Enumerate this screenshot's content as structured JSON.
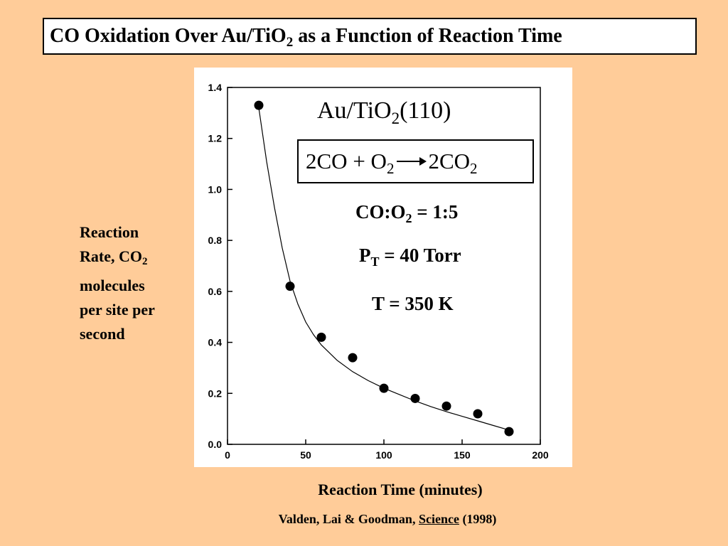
{
  "slide": {
    "title_pre": "CO Oxidation Over Au/TiO",
    "title_sub": "2",
    "title_post": " as a Function of Reaction Time",
    "ylabel_line1": "Reaction",
    "ylabel_line2_pre": "Rate, CO",
    "ylabel_line2_sub": "2",
    "ylabel_line3": "molecules",
    "ylabel_line4": "per site per",
    "ylabel_line5": "second",
    "xlabel": "Reaction Time (minutes)",
    "citation_authors": "Valden, Lai & Goodman, ",
    "citation_journal": "Science",
    "citation_year": " (1998)"
  },
  "annotations": {
    "catalyst_pre": "Au/TiO",
    "catalyst_sub": "2",
    "catalyst_post": "(110)",
    "eq_left": "2CO + O",
    "eq_left_sub": "2",
    "eq_right": "2CO",
    "eq_right_sub": "2",
    "ratio_pre": "CO:O",
    "ratio_sub": "2",
    "ratio_post": " = 1:5",
    "pressure_pre": "P",
    "pressure_sub": "T",
    "pressure_post": " = 40 Torr",
    "temperature": "T = 350 K"
  },
  "chart_data": {
    "type": "scatter",
    "xlim": [
      0,
      200
    ],
    "ylim": [
      0,
      1.4
    ],
    "x_ticks": [
      0,
      50,
      100,
      150,
      200
    ],
    "y_ticks": [
      0.0,
      0.2,
      0.4,
      0.6,
      0.8,
      1.0,
      1.2,
      1.4
    ],
    "x_tick_labels": [
      "0",
      "50",
      "100",
      "150",
      "200"
    ],
    "y_tick_labels": [
      "0.0",
      "0.2",
      "0.4",
      "0.6",
      "0.8",
      "1.0",
      "1.2",
      "1.4"
    ],
    "series": [
      {
        "x": [
          20,
          40,
          60,
          80,
          100,
          120,
          140,
          160,
          180
        ],
        "y": [
          1.33,
          0.62,
          0.42,
          0.34,
          0.22,
          0.18,
          0.15,
          0.12,
          0.05
        ]
      }
    ],
    "fit_curve": {
      "x": [
        20,
        25,
        30,
        35,
        40,
        45,
        50,
        55,
        60,
        70,
        80,
        90,
        100,
        110,
        120,
        130,
        140,
        150,
        160,
        170,
        180
      ],
      "y": [
        1.32,
        1.11,
        0.93,
        0.77,
        0.64,
        0.55,
        0.48,
        0.43,
        0.39,
        0.33,
        0.285,
        0.25,
        0.22,
        0.195,
        0.17,
        0.148,
        0.128,
        0.11,
        0.092,
        0.074,
        0.056
      ]
    },
    "grid": false,
    "marker_color": "#000000",
    "background": "#FFFFFF"
  }
}
